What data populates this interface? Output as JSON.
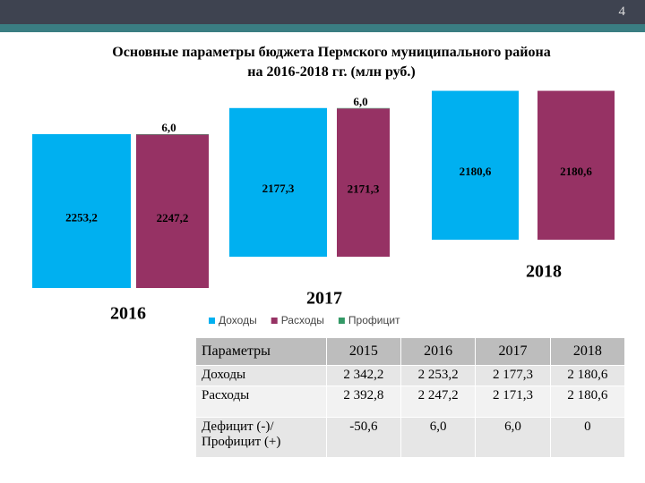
{
  "slide_number": "4",
  "chart_data": {
    "type": "bar",
    "stacked": true,
    "title": "Основные параметры бюджета Пермского муниципального района\nна 2016-2018 гг. (млн руб.)",
    "categories": [
      "2016",
      "2017",
      "2018"
    ],
    "series": [
      {
        "name": "Доходы",
        "color": "#00b0f0",
        "values": [
          2253.2,
          2177.3,
          2180.6
        ],
        "value_labels": [
          "2253,2",
          "2177,3",
          "2180,6"
        ]
      },
      {
        "name": "Расходы",
        "color": "#963264",
        "values": [
          2247.2,
          2171.3,
          2180.6
        ],
        "value_labels": [
          "2247,2",
          "2171,3",
          "2180,6"
        ]
      },
      {
        "name": "Профицит",
        "color": "#339966",
        "values": [
          6.0,
          6.0,
          null
        ],
        "value_labels": [
          "6,0",
          "6,0",
          null
        ]
      }
    ]
  },
  "table": {
    "header": [
      "Параметры",
      "2015",
      "2016",
      "2017",
      "2018"
    ],
    "rows": [
      [
        "Доходы",
        "2 342,2",
        "2 253,2",
        "2 177,3",
        "2 180,6"
      ],
      [
        "Расходы",
        "2 392,8",
        "2 247,2",
        "2 171,3",
        "2 180,6"
      ],
      [
        "Дефицит (-)/\nПрофицит (+)",
        "-50,6",
        "6,0",
        "6,0",
        "0"
      ]
    ]
  }
}
